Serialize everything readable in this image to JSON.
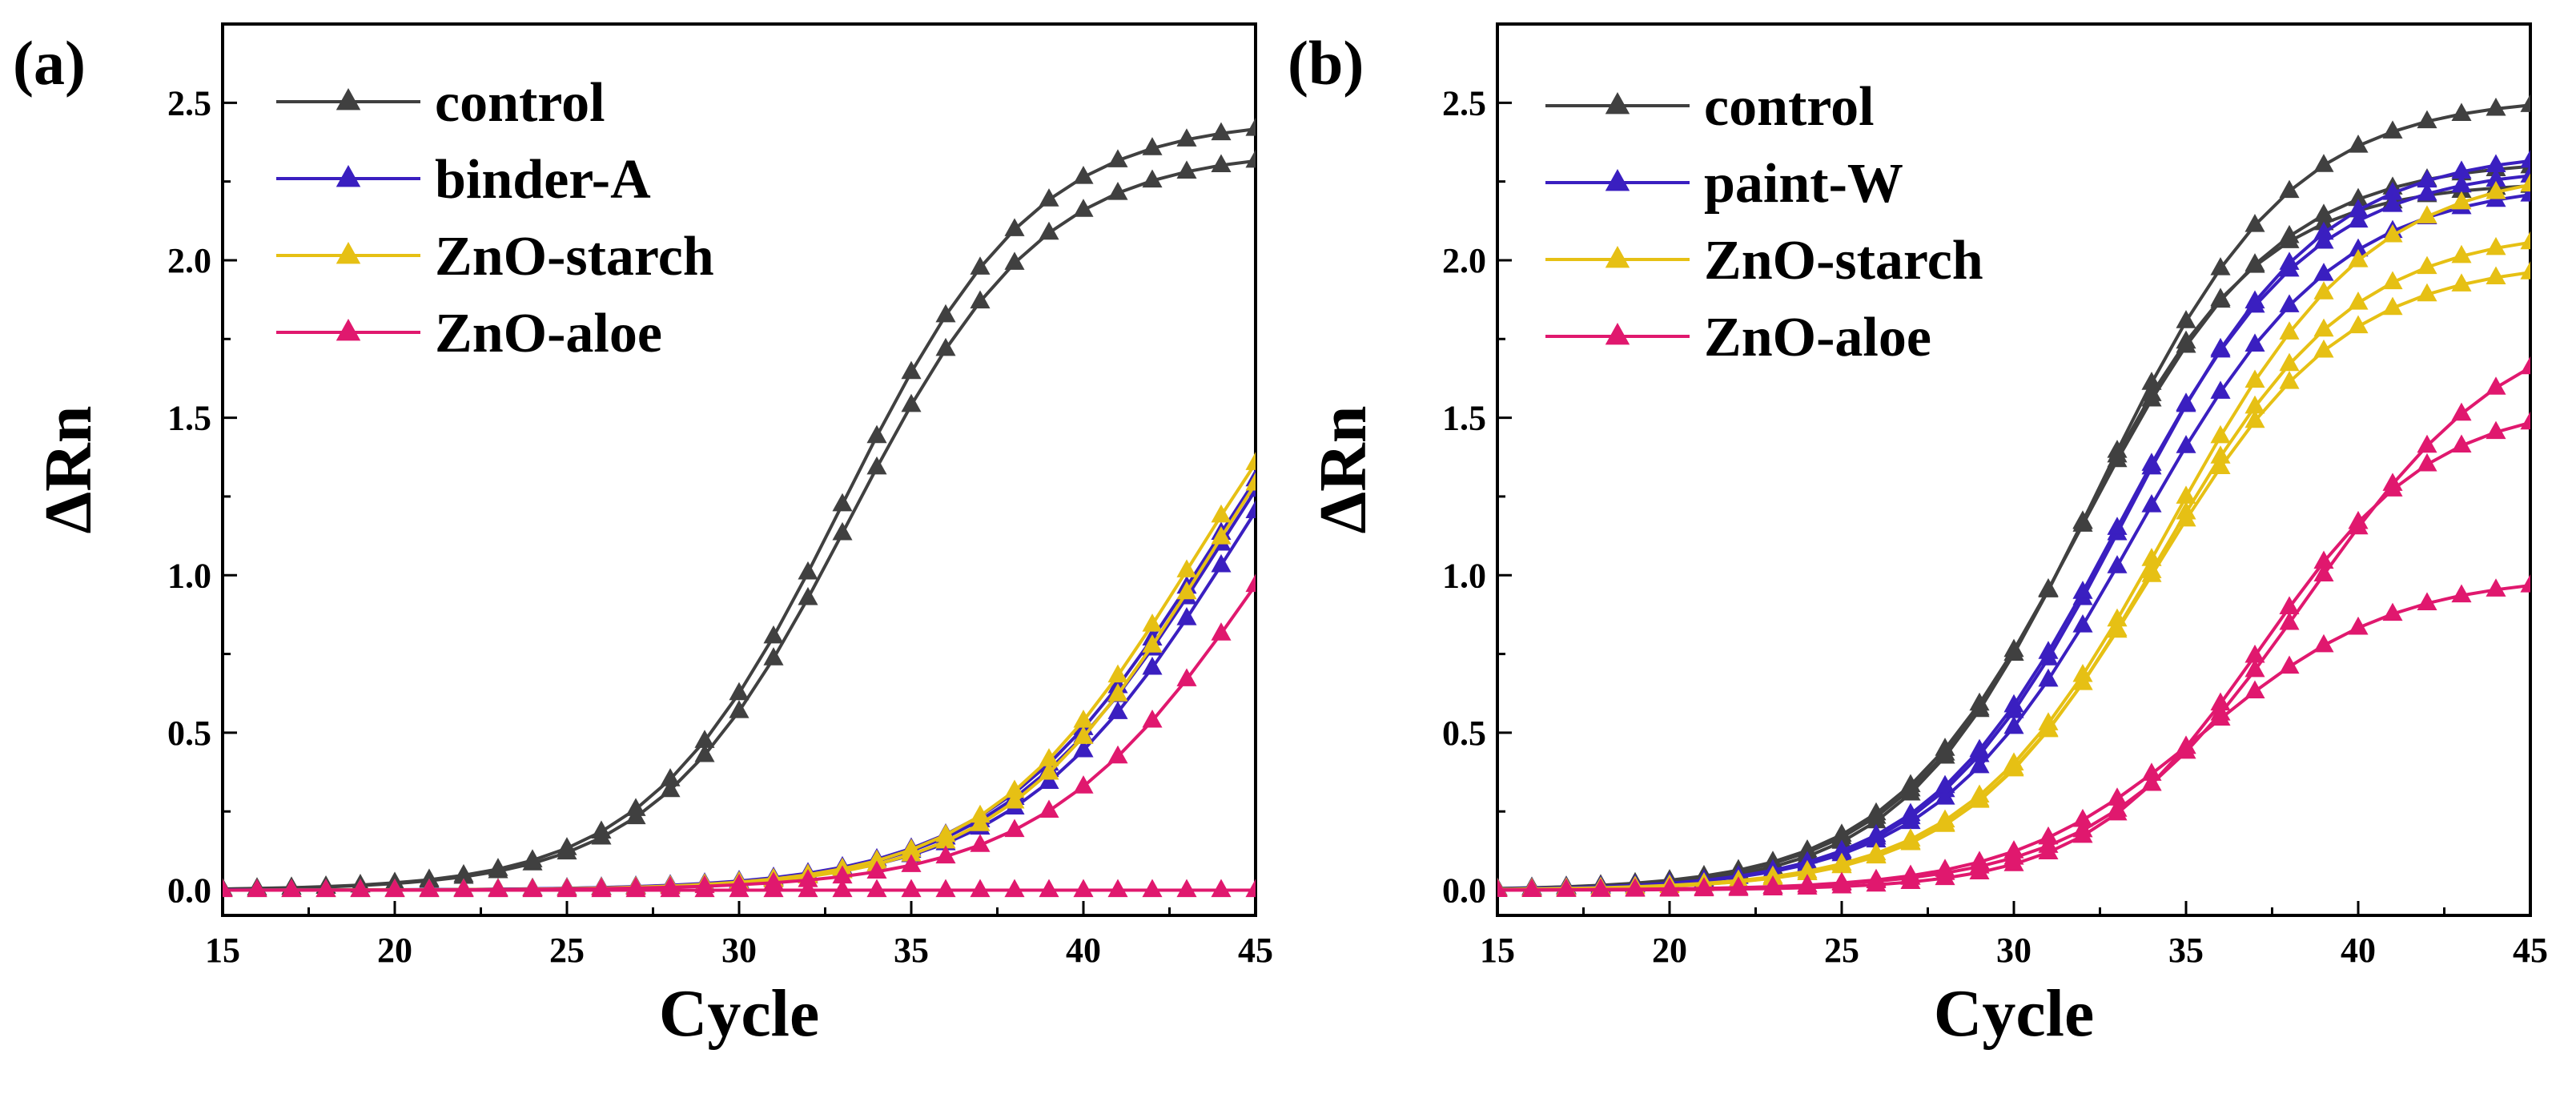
{
  "figure": {
    "panels": [
      {
        "panel_label": "(a)",
        "xlabel": "Cycle",
        "ylabel": "ΔRn",
        "x_ticks": [
          "15",
          "20",
          "25",
          "30",
          "35",
          "40",
          "45"
        ],
        "y_ticks": [
          "0.0",
          "0.5",
          "1.0",
          "1.5",
          "2.0",
          "2.5"
        ],
        "legend": [
          "control",
          "binder-A",
          "ZnO-starch",
          "ZnO-aloe"
        ]
      },
      {
        "panel_label": "(b)",
        "xlabel": "Cycle",
        "ylabel": "ΔRn",
        "x_ticks": [
          "15",
          "20",
          "25",
          "30",
          "35",
          "40",
          "45"
        ],
        "y_ticks": [
          "0.0",
          "0.5",
          "1.0",
          "1.5",
          "2.0",
          "2.5"
        ],
        "legend": [
          "control",
          "paint-W",
          "ZnO-starch",
          "ZnO-aloe"
        ]
      }
    ]
  },
  "colors": {
    "control": "#404040",
    "binder": "#3a1fc0",
    "starch": "#e6c014",
    "aloe": "#e0186e"
  },
  "chart_data": [
    {
      "type": "line",
      "title": "(a)",
      "xlabel": "Cycle",
      "ylabel": "ΔRn",
      "xlim": [
        15,
        45
      ],
      "ylim": [
        -0.08,
        2.75
      ],
      "legend_position": "top-left",
      "marker": "triangle",
      "series": [
        {
          "name": "control",
          "group": "control",
          "model": {
            "plateau": 2.45,
            "mid": 33.0,
            "slope": 2.8
          }
        },
        {
          "name": "control",
          "group": "control",
          "model": {
            "plateau": 2.35,
            "mid": 33.2,
            "slope": 2.8
          }
        },
        {
          "name": "binder-A",
          "group": "binder",
          "model": {
            "plateau": 2.2,
            "mid": 43.8,
            "slope": 3.2
          }
        },
        {
          "name": "binder-A",
          "group": "binder",
          "model": {
            "plateau": 2.2,
            "mid": 44.0,
            "slope": 3.2
          }
        },
        {
          "name": "binder-A",
          "group": "binder",
          "model": {
            "plateau": 2.2,
            "mid": 44.4,
            "slope": 3.2
          }
        },
        {
          "name": "ZnO-starch",
          "group": "starch",
          "model": {
            "plateau": 2.1,
            "mid": 43.2,
            "slope": 3.0
          }
        },
        {
          "name": "ZnO-starch",
          "group": "starch",
          "model": {
            "plateau": 2.1,
            "mid": 43.6,
            "slope": 3.0
          }
        },
        {
          "name": "ZnO-aloe",
          "group": "aloe",
          "model": {
            "plateau": 2.0,
            "mid": 45.2,
            "slope": 3.2
          }
        },
        {
          "name": "ZnO-aloe",
          "group": "aloe",
          "model": {
            "plateau": 0.0,
            "mid": 60.0,
            "slope": 3.0
          }
        }
      ]
    },
    {
      "type": "line",
      "title": "(b)",
      "xlabel": "Cycle",
      "ylabel": "ΔRn",
      "xlim": [
        15,
        45
      ],
      "ylim": [
        -0.08,
        2.75
      ],
      "legend_position": "top-left",
      "marker": "triangle",
      "series": [
        {
          "name": "control",
          "group": "control",
          "model": {
            "plateau": 2.52,
            "mid": 32.4,
            "slope": 2.8
          }
        },
        {
          "name": "control",
          "group": "control",
          "model": {
            "plateau": 2.32,
            "mid": 32.0,
            "slope": 2.8
          }
        },
        {
          "name": "control",
          "group": "control",
          "model": {
            "plateau": 2.25,
            "mid": 31.8,
            "slope": 2.6
          }
        },
        {
          "name": "paint-W",
          "group": "binder",
          "model": {
            "plateau": 2.35,
            "mid": 33.2,
            "slope": 2.8
          }
        },
        {
          "name": "paint-W",
          "group": "binder",
          "model": {
            "plateau": 2.3,
            "mid": 33.0,
            "slope": 2.8
          }
        },
        {
          "name": "paint-W",
          "group": "binder",
          "model": {
            "plateau": 2.25,
            "mid": 33.5,
            "slope": 2.9
          }
        },
        {
          "name": "ZnO-starch",
          "group": "starch",
          "model": {
            "plateau": 2.3,
            "mid": 34.5,
            "slope": 2.9
          }
        },
        {
          "name": "ZnO-starch",
          "group": "starch",
          "model": {
            "plateau": 2.1,
            "mid": 34.2,
            "slope": 2.8
          }
        },
        {
          "name": "ZnO-starch",
          "group": "starch",
          "model": {
            "plateau": 2.0,
            "mid": 34.0,
            "slope": 2.8
          }
        },
        {
          "name": "ZnO-aloe",
          "group": "aloe",
          "model": {
            "plateau": 1.85,
            "mid": 38.5,
            "slope": 3.0
          }
        },
        {
          "name": "ZnO-aloe",
          "group": "aloe",
          "model": {
            "plateau": 1.55,
            "mid": 37.2,
            "slope": 2.5
          }
        },
        {
          "name": "ZnO-aloe",
          "group": "aloe",
          "model": {
            "plateau": 1.0,
            "mid": 35.5,
            "slope": 2.8
          }
        }
      ]
    }
  ]
}
